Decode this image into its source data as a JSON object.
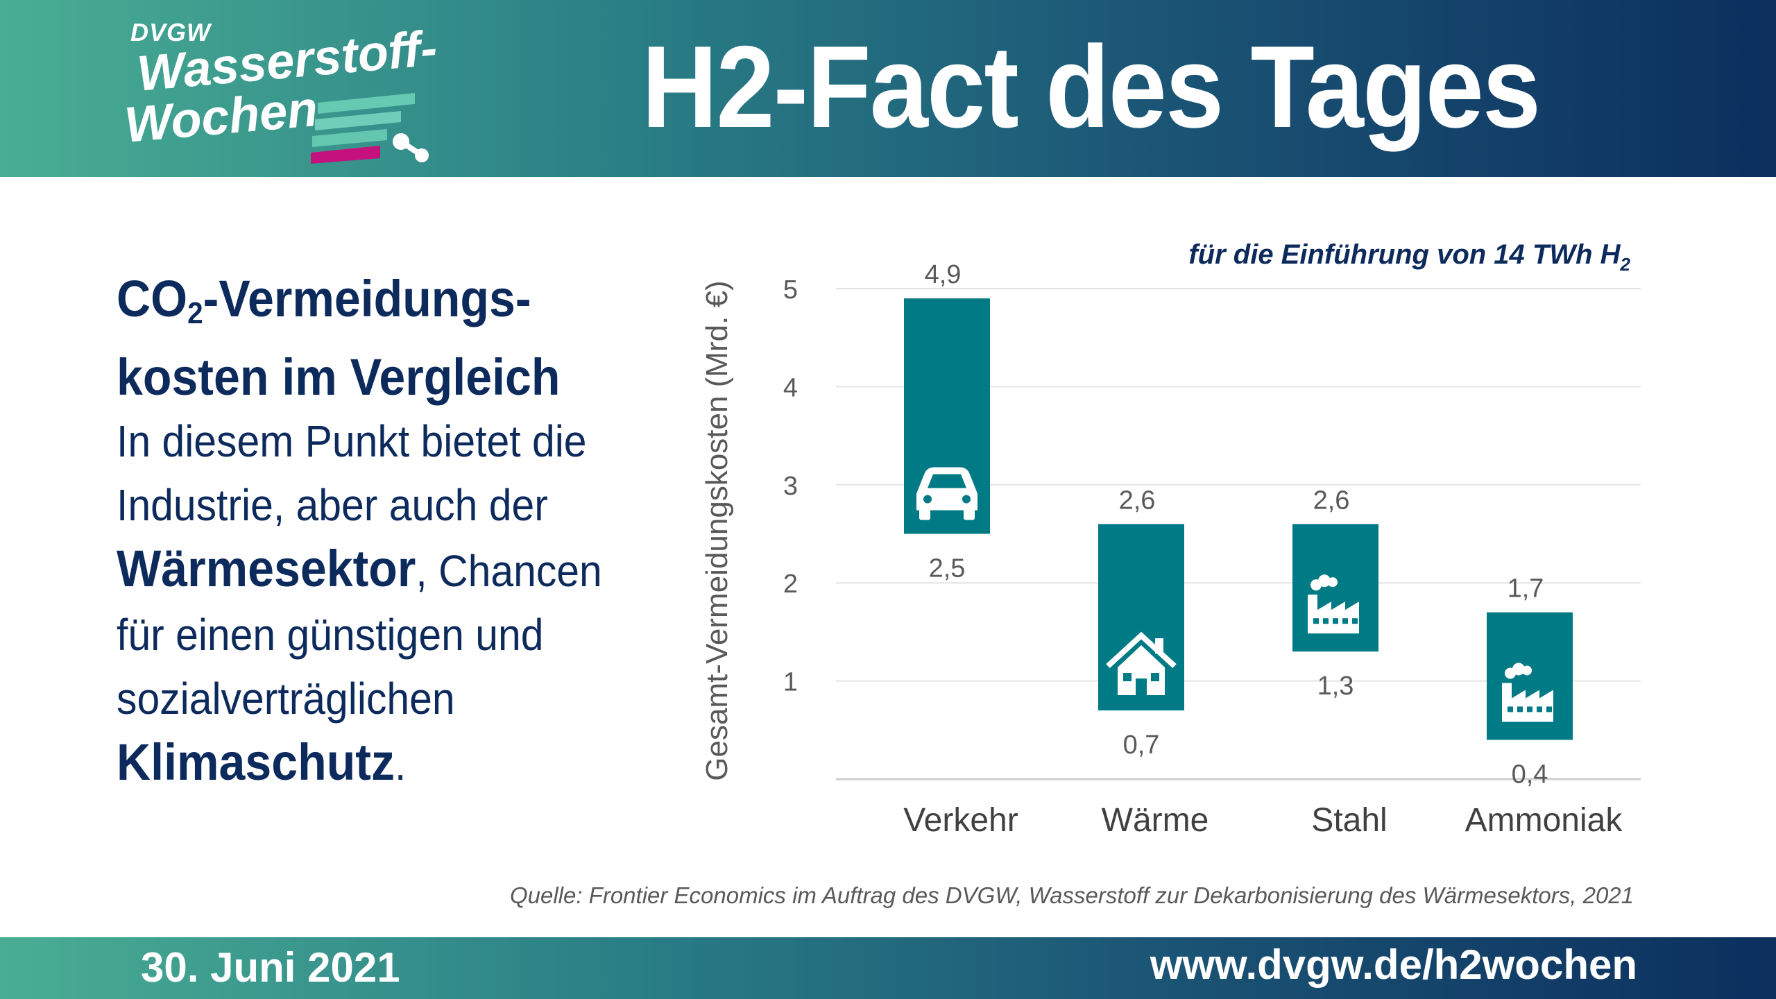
{
  "header": {
    "logo": {
      "org": "DVGW",
      "line1": "Wasserstoff-",
      "line2": "Wochen"
    },
    "title": "H2-Fact des Tages"
  },
  "left": {
    "heading_line1_a": "CO",
    "heading_line1_sub": "2",
    "heading_line1_b": "-Vermeidungs-",
    "heading_line2": "kosten im Vergleich",
    "line1": "In diesem Punkt bietet die",
    "line2": "Industrie, aber auch der",
    "line3_bold": "Wärmesektor",
    "line3_rest": ", Chancen",
    "line4": "für einen günstigen und",
    "line5": "sozialverträglichen",
    "line6_bold": "Klimaschutz",
    "line6_rest": "."
  },
  "chart_data": {
    "type": "bar",
    "subtitle": "für die Einführung von 14 TWh H",
    "subtitle_sub": "2",
    "ylabel": "Gesamt-Vermeidungskosten (Mrd. €)",
    "ylim": [
      0,
      5
    ],
    "yticks": [
      1,
      2,
      3,
      4,
      5
    ],
    "grid": true,
    "color": "#007a85",
    "categories": [
      "Verkehr",
      "Wärme",
      "Stahl",
      "Ammoniak"
    ],
    "ranges": [
      {
        "low": 2.5,
        "high": 4.9,
        "low_label": "2,5",
        "high_label": "4,9",
        "icon": "car-icon"
      },
      {
        "low": 0.7,
        "high": 2.6,
        "low_label": "0,7",
        "high_label": "2,6",
        "icon": "house-icon"
      },
      {
        "low": 1.3,
        "high": 2.6,
        "low_label": "1,3",
        "high_label": "2,6",
        "icon": "factory-icon"
      },
      {
        "low": 0.4,
        "high": 1.7,
        "low_label": "0,4",
        "high_label": "1,7",
        "icon": "factory-icon"
      }
    ]
  },
  "source": "Quelle: Frontier Economics im Auftrag des DVGW, Wasserstoff zur Dekarbonisierung des Wärmesektors, 2021",
  "footer": {
    "date": "30. Juni 2021",
    "url": "www.dvgw.de/h2wochen"
  },
  "colors": {
    "navy": "#0d2a5c",
    "teal": "#007a85",
    "band_start": "#49ad93",
    "band_end": "#0c2f5e",
    "logo_accent": "#c4117d"
  }
}
